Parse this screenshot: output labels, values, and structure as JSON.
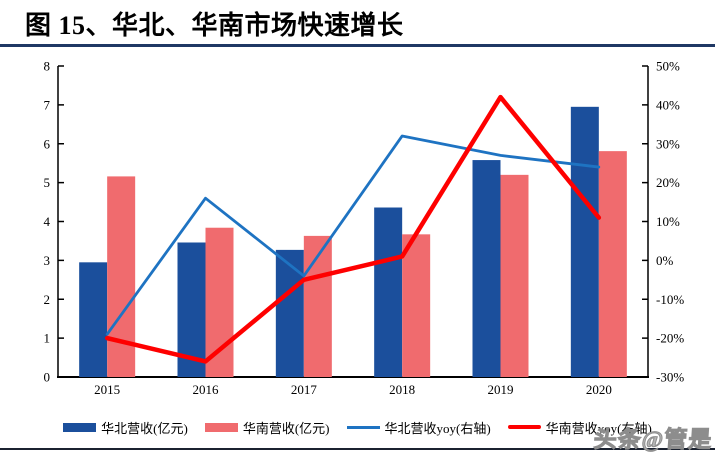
{
  "header": {
    "title": "图 15、华北、华南市场快速增长"
  },
  "watermark": {
    "text": "头条@管是"
  },
  "chart_data": {
    "type": "bar+line combo",
    "categories": [
      "2015",
      "2016",
      "2017",
      "2018",
      "2019",
      "2020"
    ],
    "series": [
      {
        "key": "north-revenue",
        "name": "华北营收(亿元)",
        "type": "bar",
        "axis": "left",
        "color": "#1B4F9C",
        "values": [
          2.95,
          3.46,
          3.27,
          4.36,
          5.58,
          6.95
        ]
      },
      {
        "key": "south-revenue",
        "name": "华南营收(亿元)",
        "type": "bar",
        "axis": "left",
        "color": "#F06B6E",
        "values": [
          5.16,
          3.84,
          3.63,
          3.67,
          5.2,
          5.81
        ]
      },
      {
        "key": "north-yoy",
        "name": "华北营收yoy(右轴)",
        "type": "line",
        "axis": "right",
        "color": "#1E73C2",
        "values": [
          -19,
          16,
          -4,
          32,
          27,
          24
        ]
      },
      {
        "key": "south-yoy",
        "name": "华南营收yoy(右轴)",
        "type": "line",
        "axis": "right",
        "color": "#FE0000",
        "values": [
          -20,
          -26,
          -5,
          1,
          42,
          11
        ]
      }
    ],
    "left_axis": {
      "min": 0,
      "max": 8,
      "step": 1,
      "ticks": [
        "0",
        "1",
        "2",
        "3",
        "4",
        "5",
        "6",
        "7",
        "8"
      ]
    },
    "right_axis": {
      "min": -30,
      "max": 50,
      "step": 10,
      "ticks": [
        "-30%",
        "-20%",
        "-10%",
        "0%",
        "10%",
        "20%",
        "30%",
        "40%",
        "50%"
      ],
      "unit": "%"
    },
    "grid": false,
    "legend_position": "bottom",
    "axis_color": "#000000"
  }
}
